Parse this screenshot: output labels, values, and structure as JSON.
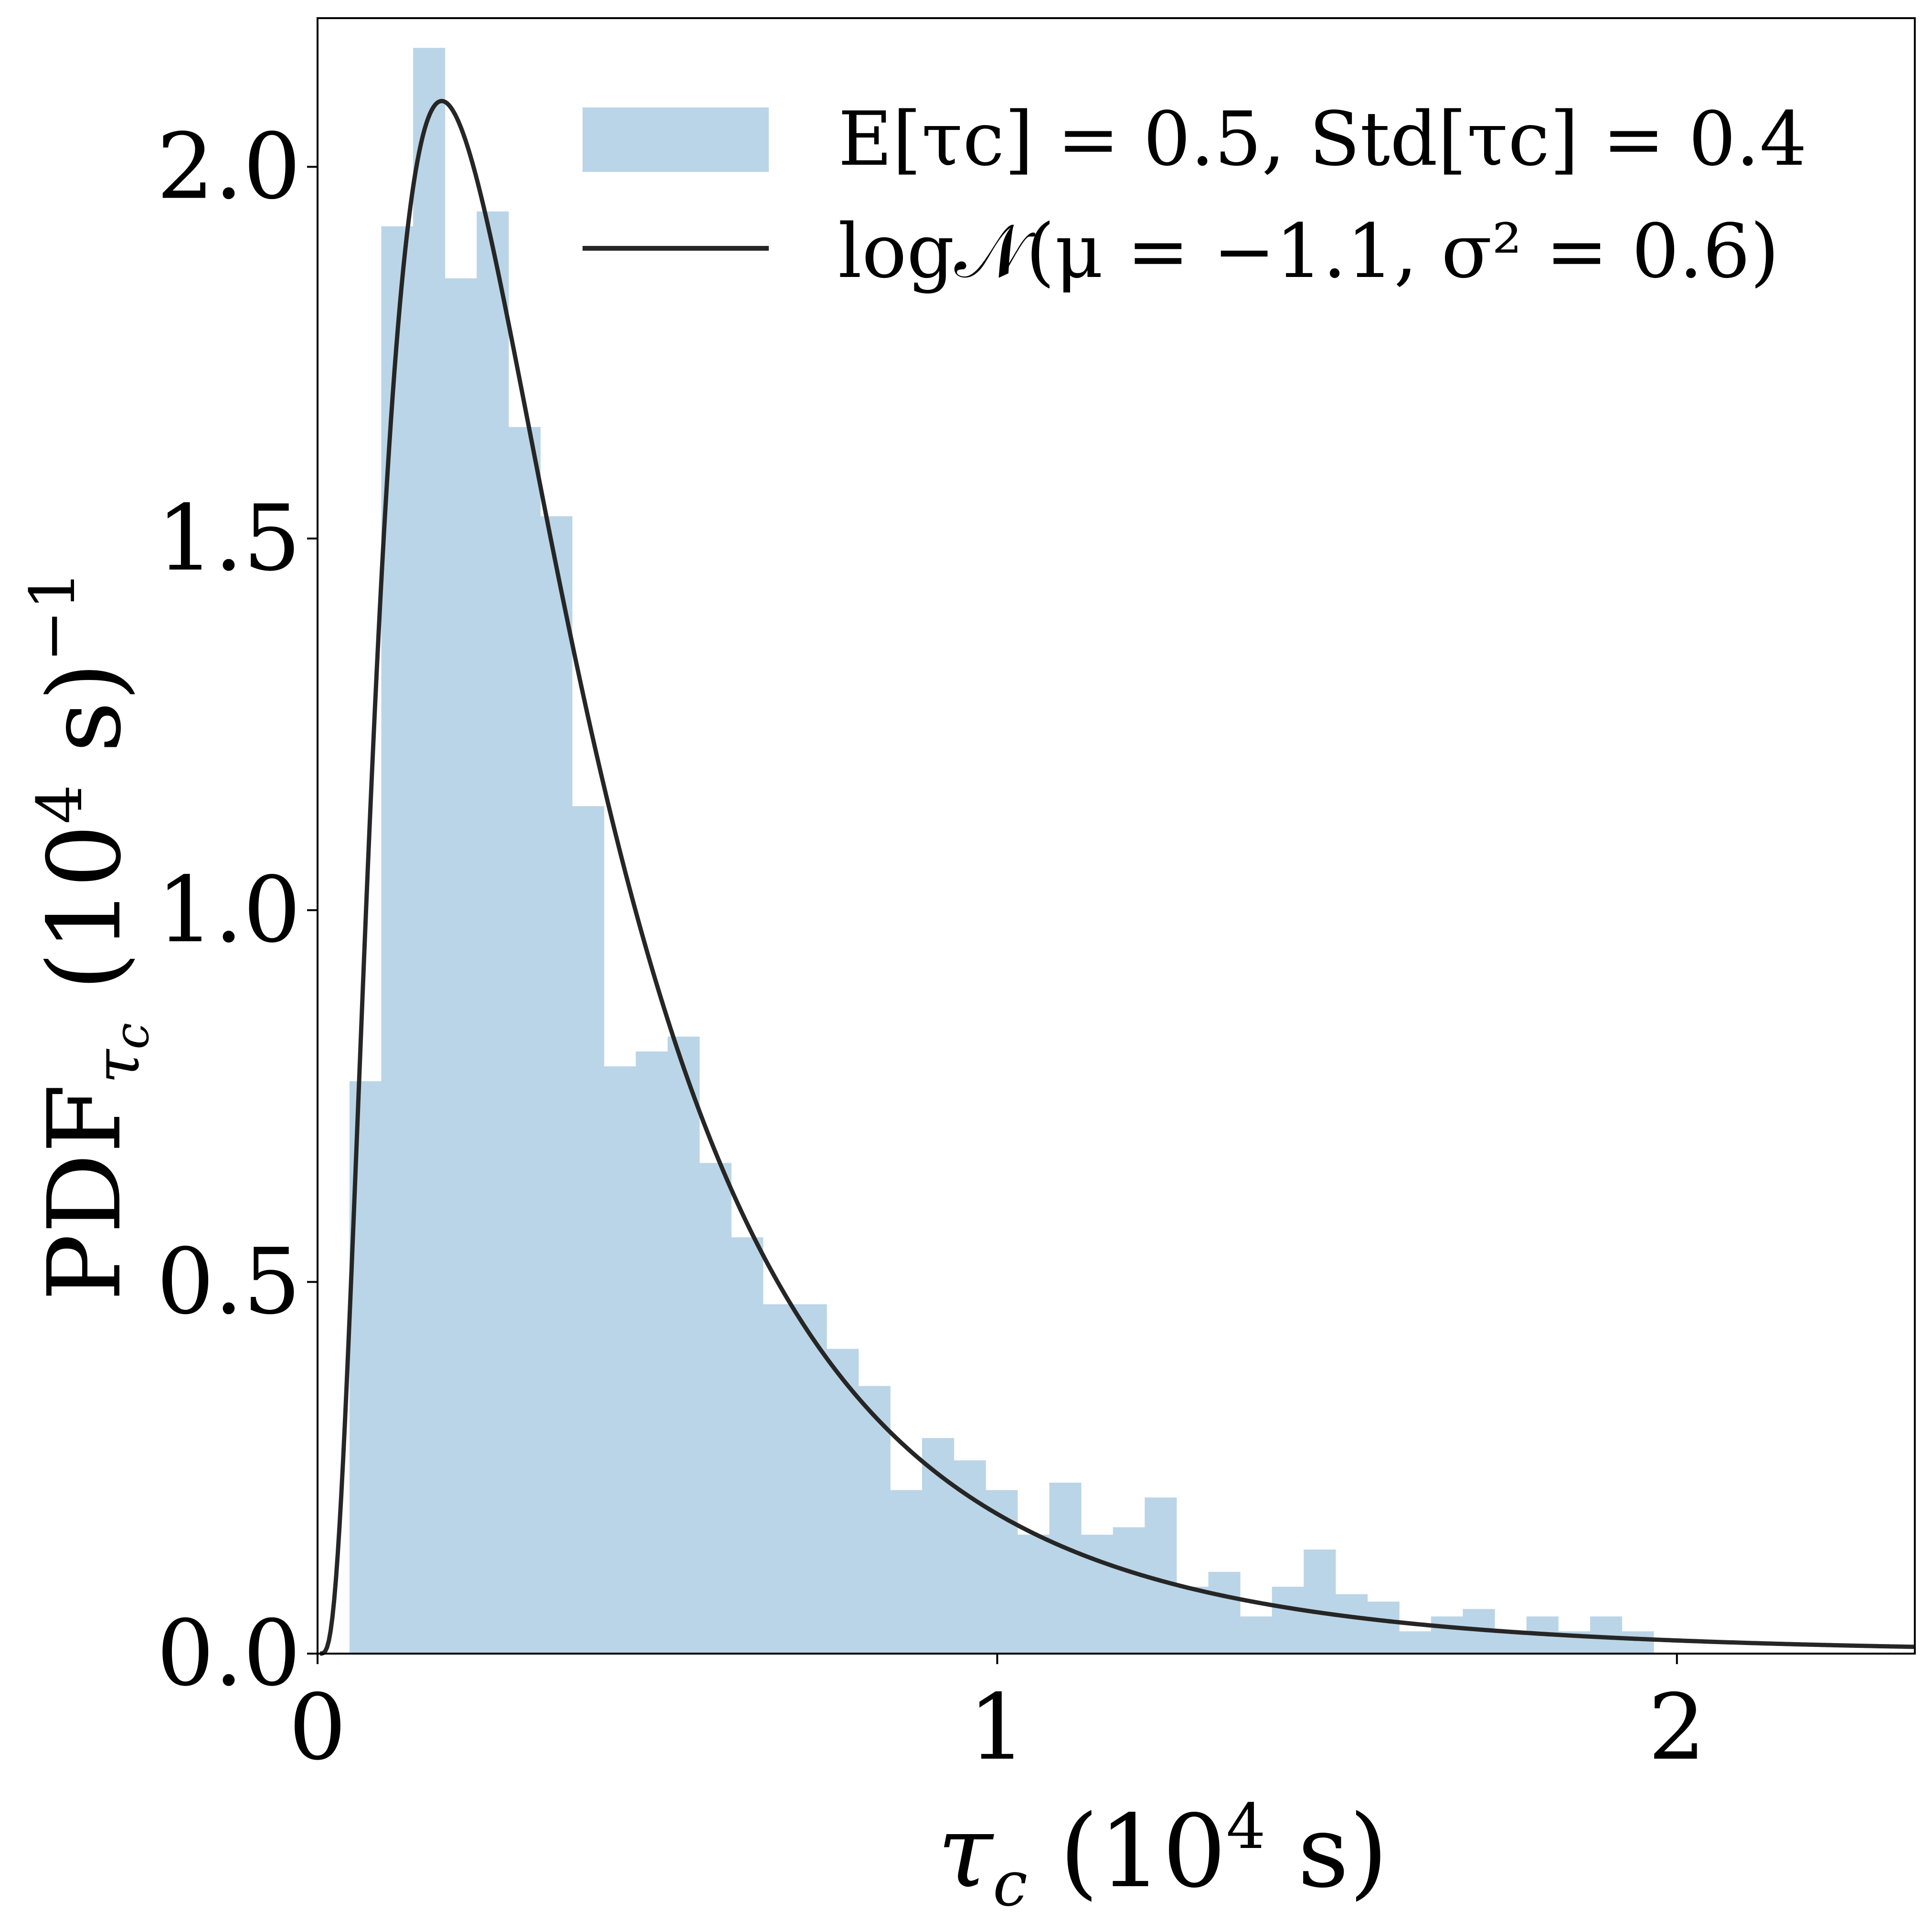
{
  "chart_data": {
    "type": "bar",
    "title": "",
    "xlabel": "τc (10⁴ s)",
    "ylabel": "PDFτc (10⁴ s)⁻¹",
    "xlim": [
      0,
      2.35
    ],
    "ylim": [
      0,
      2.2
    ],
    "xticks": [
      0,
      1,
      2
    ],
    "xtick_labels": [
      "0",
      "1",
      "2"
    ],
    "yticks": [
      0,
      0.5,
      1.0,
      1.5,
      2.0
    ],
    "ytick_labels": [
      "0.0",
      "0.5",
      "1.0",
      "1.5",
      "2.0"
    ],
    "grid": false,
    "legend_position": "top-right",
    "histogram": {
      "name": "E[τc] = 0.5, Std[τc] = 0.4",
      "color": "#bad5e7",
      "bin_start": 0.047,
      "bin_width": 0.0468,
      "values": [
        0.77,
        1.92,
        2.16,
        1.85,
        1.94,
        1.65,
        1.53,
        1.14,
        0.79,
        0.81,
        0.83,
        0.66,
        0.56,
        0.47,
        0.47,
        0.41,
        0.36,
        0.22,
        0.29,
        0.26,
        0.22,
        0.16,
        0.23,
        0.16,
        0.17,
        0.21,
        0.09,
        0.11,
        0.05,
        0.09,
        0.14,
        0.08,
        0.07,
        0.03,
        0.05,
        0.06,
        0.03,
        0.05,
        0.03,
        0.05,
        0.03,
        0.0,
        0.0,
        0.0,
        0.0,
        0.0,
        0.0,
        0.0,
        0.0,
        0.0
      ]
    },
    "fit_curve": {
      "name": "log𝒩(μ = −1.1, σ² = 0.6)",
      "distribution": "lognormal",
      "mu": -1.1,
      "sigma2": 0.6,
      "color": "#262626"
    }
  },
  "legend": {
    "hist_label": "E[τc] = 0.5, Std[τc] = 0.4",
    "curve_label": "log𝒩(μ = −1.1, σ² = 0.6)"
  }
}
